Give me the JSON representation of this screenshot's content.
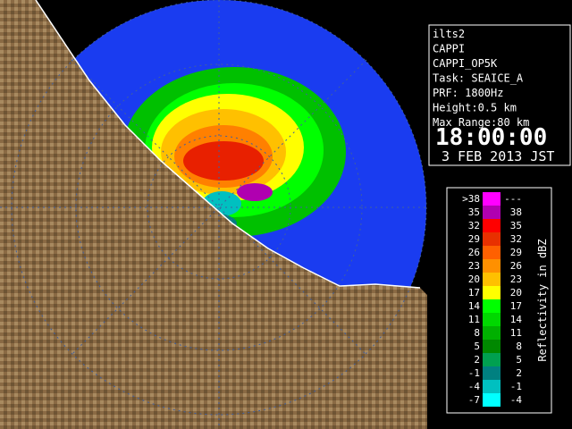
{
  "info": {
    "lines": [
      "ilts2",
      "CAPPI",
      "CAPPI_OP5K",
      "Task: SEAICE_A",
      "PRF: 1800Hz",
      "Height:0.5 km",
      "Max Range:80 km"
    ],
    "time": "18:00:00",
    "date": "3 FEB 2013 JST"
  },
  "legend": {
    "title": "Reflectivity in dBZ",
    "rows": [
      {
        "low": ">38",
        "high": "---",
        "color": "#ff00ff"
      },
      {
        "low": 35,
        "high": 38,
        "color": "#b000b0"
      },
      {
        "low": 32,
        "high": 35,
        "color": "#ff0000"
      },
      {
        "low": 29,
        "high": 32,
        "color": "#e83000"
      },
      {
        "low": 26,
        "high": 29,
        "color": "#ff6000"
      },
      {
        "low": 23,
        "high": 26,
        "color": "#ff9000"
      },
      {
        "low": 20,
        "high": 23,
        "color": "#ffc000"
      },
      {
        "low": 17,
        "high": 20,
        "color": "#ffff00"
      },
      {
        "low": 14,
        "high": 17,
        "color": "#00ff00"
      },
      {
        "low": 11,
        "high": 14,
        "color": "#00d800"
      },
      {
        "low": 8,
        "high": 11,
        "color": "#00b000"
      },
      {
        "low": 5,
        "high": 8,
        "color": "#008800"
      },
      {
        "low": 2,
        "high": 5,
        "color": "#00a050"
      },
      {
        "low": -1,
        "high": 2,
        "color": "#008080"
      },
      {
        "low": -4,
        "high": -1,
        "color": "#00c0c0"
      },
      {
        "low": -7,
        "high": -4,
        "color": "#00ffff"
      }
    ]
  }
}
